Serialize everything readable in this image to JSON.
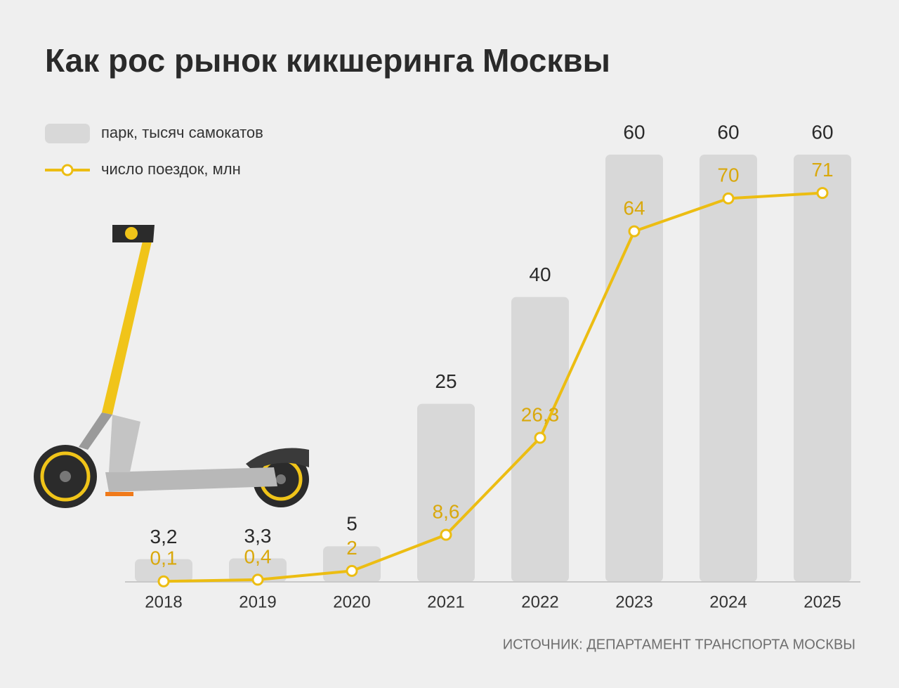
{
  "chart_data": {
    "type": "bar",
    "title": "Как рос рынок кикшеринга Москвы",
    "source": "ИСТОЧНИК: ДЕПАРТАМЕНТ ТРАНСПОРТА МОСКВЫ",
    "categories": [
      "2018",
      "2019",
      "2020",
      "2021",
      "2022",
      "2023",
      "2024",
      "2025"
    ],
    "series": [
      {
        "name": "парк, тысяч самокатов",
        "type": "bar",
        "color": "#d8d8d8",
        "values": [
          3.2,
          3.3,
          5,
          25,
          40,
          60,
          60,
          60
        ],
        "value_labels": [
          "3,2",
          "3,3",
          "5",
          "25",
          "40",
          "60",
          "60",
          "60"
        ]
      },
      {
        "name": "число поездок, млн",
        "type": "line",
        "axis": "y2",
        "color": "#ecbd12",
        "values": [
          0.1,
          0.4,
          2,
          8.6,
          26.3,
          64,
          70,
          71
        ],
        "value_labels": [
          "0,1",
          "0,4",
          "2",
          "8,6",
          "26,3",
          "64",
          "70",
          "71"
        ]
      }
    ],
    "ylim": [
      0,
      60
    ],
    "y2lim": [
      0,
      78
    ]
  }
}
